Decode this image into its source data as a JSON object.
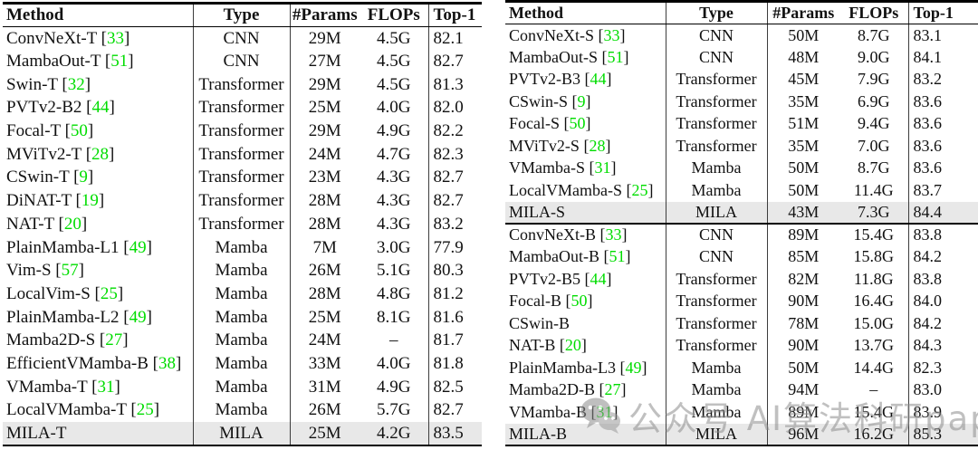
{
  "colors": {
    "ref_green": "#00dd00",
    "highlight_row": "#e8e8e8",
    "rule_black": "#000000",
    "watermark_gray": "#8c8c8c"
  },
  "watermark": {
    "icon": "wechat-icon",
    "text": "公众号  AI算法科研paper"
  },
  "tables": [
    {
      "name": "imagenet-results-tiny-scale",
      "headers": {
        "method": "Method",
        "type": "Type",
        "params": "#Params",
        "flops": "FLOPs",
        "top1": "Top-1"
      },
      "rows": [
        {
          "method": "ConvNeXt-T",
          "ref": "33",
          "type": "CNN",
          "params": "29M",
          "flops": "4.5G",
          "top1": "82.1",
          "highlight": false,
          "group_end": false
        },
        {
          "method": "MambaOut-T",
          "ref": "51",
          "type": "CNN",
          "params": "27M",
          "flops": "4.5G",
          "top1": "82.7",
          "highlight": false,
          "group_end": false
        },
        {
          "method": "Swin-T",
          "ref": "32",
          "type": "Transformer",
          "params": "29M",
          "flops": "4.5G",
          "top1": "81.3",
          "highlight": false,
          "group_end": false
        },
        {
          "method": "PVTv2-B2",
          "ref": "44",
          "type": "Transformer",
          "params": "25M",
          "flops": "4.0G",
          "top1": "82.0",
          "highlight": false,
          "group_end": false
        },
        {
          "method": "Focal-T",
          "ref": "50",
          "type": "Transformer",
          "params": "29M",
          "flops": "4.9G",
          "top1": "82.2",
          "highlight": false,
          "group_end": false
        },
        {
          "method": "MViTv2-T",
          "ref": "28",
          "type": "Transformer",
          "params": "24M",
          "flops": "4.7G",
          "top1": "82.3",
          "highlight": false,
          "group_end": false
        },
        {
          "method": "CSwin-T",
          "ref": "9",
          "type": "Transformer",
          "params": "23M",
          "flops": "4.3G",
          "top1": "82.7",
          "highlight": false,
          "group_end": false
        },
        {
          "method": "DiNAT-T",
          "ref": "19",
          "type": "Transformer",
          "params": "28M",
          "flops": "4.3G",
          "top1": "82.7",
          "highlight": false,
          "group_end": false
        },
        {
          "method": "NAT-T",
          "ref": "20",
          "type": "Transformer",
          "params": "28M",
          "flops": "4.3G",
          "top1": "83.2",
          "highlight": false,
          "group_end": false
        },
        {
          "method": "PlainMamba-L1",
          "ref": "49",
          "type": "Mamba",
          "params": "7M",
          "flops": "3.0G",
          "top1": "77.9",
          "highlight": false,
          "group_end": false
        },
        {
          "method": "Vim-S",
          "ref": "57",
          "type": "Mamba",
          "params": "26M",
          "flops": "5.1G",
          "top1": "80.3",
          "highlight": false,
          "group_end": false
        },
        {
          "method": "LocalVim-S",
          "ref": "25",
          "type": "Mamba",
          "params": "28M",
          "flops": "4.8G",
          "top1": "81.2",
          "highlight": false,
          "group_end": false
        },
        {
          "method": "PlainMamba-L2",
          "ref": "49",
          "type": "Mamba",
          "params": "25M",
          "flops": "8.1G",
          "top1": "81.6",
          "highlight": false,
          "group_end": false
        },
        {
          "method": "Mamba2D-S",
          "ref": "27",
          "type": "Mamba",
          "params": "24M",
          "flops": "–",
          "top1": "81.7",
          "highlight": false,
          "group_end": false
        },
        {
          "method": "EfficientVMamba-B",
          "ref": "38",
          "type": "Mamba",
          "params": "33M",
          "flops": "4.0G",
          "top1": "81.8",
          "highlight": false,
          "group_end": false
        },
        {
          "method": "VMamba-T",
          "ref": "31",
          "type": "Mamba",
          "params": "31M",
          "flops": "4.9G",
          "top1": "82.5",
          "highlight": false,
          "group_end": false
        },
        {
          "method": "LocalVMamba-T",
          "ref": "25",
          "type": "Mamba",
          "params": "26M",
          "flops": "5.7G",
          "top1": "82.7",
          "highlight": false,
          "group_end": false
        },
        {
          "method": "MILA-T",
          "ref": null,
          "type": "MILA",
          "params": "25M",
          "flops": "4.2G",
          "top1": "83.5",
          "highlight": true,
          "group_end": false
        }
      ]
    },
    {
      "name": "imagenet-results-small-base-scale",
      "headers": {
        "method": "Method",
        "type": "Type",
        "params": "#Params",
        "flops": "FLOPs",
        "top1": "Top-1"
      },
      "rows": [
        {
          "method": "ConvNeXt-S",
          "ref": "33",
          "type": "CNN",
          "params": "50M",
          "flops": "8.7G",
          "top1": "83.1",
          "highlight": false,
          "group_end": false
        },
        {
          "method": "MambaOut-S",
          "ref": "51",
          "type": "CNN",
          "params": "48M",
          "flops": "9.0G",
          "top1": "84.1",
          "highlight": false,
          "group_end": false
        },
        {
          "method": "PVTv2-B3",
          "ref": "44",
          "type": "Transformer",
          "params": "45M",
          "flops": "7.9G",
          "top1": "83.2",
          "highlight": false,
          "group_end": false
        },
        {
          "method": "CSwin-S",
          "ref": "9",
          "type": "Transformer",
          "params": "35M",
          "flops": "6.9G",
          "top1": "83.6",
          "highlight": false,
          "group_end": false
        },
        {
          "method": "Focal-S",
          "ref": "50",
          "type": "Transformer",
          "params": "51M",
          "flops": "9.4G",
          "top1": "83.6",
          "highlight": false,
          "group_end": false
        },
        {
          "method": "MViTv2-S",
          "ref": "28",
          "type": "Transformer",
          "params": "35M",
          "flops": "7.0G",
          "top1": "83.6",
          "highlight": false,
          "group_end": false
        },
        {
          "method": "VMamba-S",
          "ref": "31",
          "type": "Mamba",
          "params": "50M",
          "flops": "8.7G",
          "top1": "83.6",
          "highlight": false,
          "group_end": false
        },
        {
          "method": "LocalVMamba-S",
          "ref": "25",
          "type": "Mamba",
          "params": "50M",
          "flops": "11.4G",
          "top1": "83.7",
          "highlight": false,
          "group_end": false
        },
        {
          "method": "MILA-S",
          "ref": null,
          "type": "MILA",
          "params": "43M",
          "flops": "7.3G",
          "top1": "84.4",
          "highlight": true,
          "group_end": true
        },
        {
          "method": "ConvNeXt-B",
          "ref": "33",
          "type": "CNN",
          "params": "89M",
          "flops": "15.4G",
          "top1": "83.8",
          "highlight": false,
          "group_end": false
        },
        {
          "method": "MambaOut-B",
          "ref": "51",
          "type": "CNN",
          "params": "85M",
          "flops": "15.8G",
          "top1": "84.2",
          "highlight": false,
          "group_end": false
        },
        {
          "method": "PVTv2-B5",
          "ref": "44",
          "type": "Transformer",
          "params": "82M",
          "flops": "11.8G",
          "top1": "83.8",
          "highlight": false,
          "group_end": false
        },
        {
          "method": "Focal-B",
          "ref": "50",
          "type": "Transformer",
          "params": "90M",
          "flops": "16.4G",
          "top1": "84.0",
          "highlight": false,
          "group_end": false
        },
        {
          "method": "CSwin-B",
          "ref": null,
          "type": "Transformer",
          "params": "78M",
          "flops": "15.0G",
          "top1": "84.2",
          "highlight": false,
          "group_end": false
        },
        {
          "method": "NAT-B",
          "ref": "20",
          "type": "Transformer",
          "params": "90M",
          "flops": "13.7G",
          "top1": "84.3",
          "highlight": false,
          "group_end": false
        },
        {
          "method": "PlainMamba-L3",
          "ref": "49",
          "type": "Mamba",
          "params": "50M",
          "flops": "14.4G",
          "top1": "82.3",
          "highlight": false,
          "group_end": false
        },
        {
          "method": "Mamba2D-B",
          "ref": "27",
          "type": "Mamba",
          "params": "94M",
          "flops": "–",
          "top1": "83.0",
          "highlight": false,
          "group_end": false
        },
        {
          "method": "VMamba-B",
          "ref": "31",
          "type": "Mamba",
          "params": "89M",
          "flops": "15.4G",
          "top1": "83.9",
          "highlight": false,
          "group_end": false
        },
        {
          "method": "MILA-B",
          "ref": null,
          "type": "MILA",
          "params": "96M",
          "flops": "16.2G",
          "top1": "85.3",
          "highlight": true,
          "group_end": false
        }
      ]
    }
  ]
}
